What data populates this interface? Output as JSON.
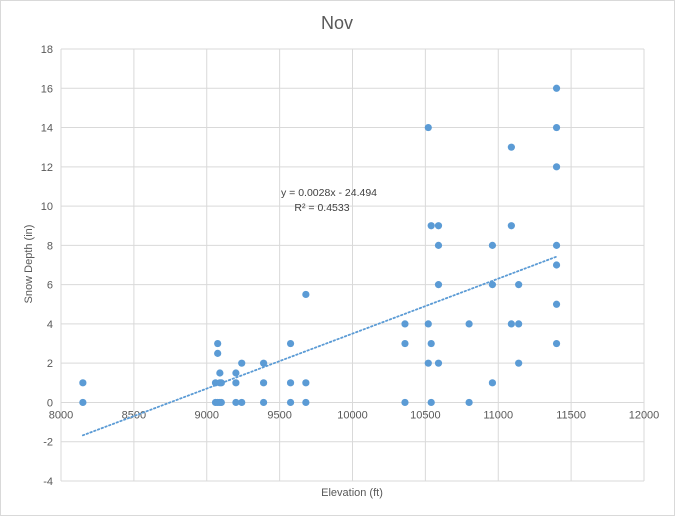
{
  "chart_data": {
    "type": "scatter",
    "title": "Nov",
    "xlabel": "Elevation (ft)",
    "ylabel": "Snow Depth (in)",
    "xlim": [
      8000,
      12000
    ],
    "ylim": [
      -4,
      18
    ],
    "x_ticks": [
      8000,
      8500,
      9000,
      9500,
      10000,
      10500,
      11000,
      11500,
      12000
    ],
    "y_ticks": [
      -4,
      -2,
      0,
      2,
      4,
      6,
      8,
      10,
      12,
      14,
      16,
      18
    ],
    "grid": true,
    "legend": "none",
    "marker_color": "#5b9bd5",
    "trendline": {
      "type": "linear",
      "slope": 0.0028,
      "intercept": -24.494,
      "x_range": [
        8150,
        11400
      ],
      "color": "#5b9bd5",
      "equation": "y = 0.0028x - 24.494",
      "r_squared": "R² = 0.4533"
    },
    "points": [
      [
        8150,
        0
      ],
      [
        8150,
        1
      ],
      [
        9060,
        0
      ],
      [
        9060,
        1
      ],
      [
        9075,
        0
      ],
      [
        9075,
        2.5
      ],
      [
        9075,
        3
      ],
      [
        9090,
        0
      ],
      [
        9090,
        1
      ],
      [
        9090,
        1.5
      ],
      [
        9100,
        0
      ],
      [
        9100,
        1
      ],
      [
        9200,
        0
      ],
      [
        9200,
        1
      ],
      [
        9200,
        1.5
      ],
      [
        9240,
        0
      ],
      [
        9240,
        2
      ],
      [
        9390,
        0
      ],
      [
        9390,
        1
      ],
      [
        9390,
        2
      ],
      [
        9575,
        0
      ],
      [
        9575,
        1
      ],
      [
        9575,
        3
      ],
      [
        9680,
        0
      ],
      [
        9680,
        1
      ],
      [
        9680,
        5.5
      ],
      [
        10360,
        0
      ],
      [
        10360,
        3
      ],
      [
        10360,
        4
      ],
      [
        10520,
        2
      ],
      [
        10520,
        4
      ],
      [
        10520,
        14
      ],
      [
        10540,
        0
      ],
      [
        10540,
        3
      ],
      [
        10540,
        9
      ],
      [
        10590,
        2
      ],
      [
        10590,
        6
      ],
      [
        10590,
        8
      ],
      [
        10590,
        9
      ],
      [
        10800,
        0
      ],
      [
        10800,
        4
      ],
      [
        10960,
        1
      ],
      [
        10960,
        6
      ],
      [
        10960,
        8
      ],
      [
        11090,
        4
      ],
      [
        11090,
        9
      ],
      [
        11090,
        13
      ],
      [
        11140,
        2
      ],
      [
        11140,
        4
      ],
      [
        11140,
        6
      ],
      [
        11400,
        3
      ],
      [
        11400,
        5
      ],
      [
        11400,
        7
      ],
      [
        11400,
        8
      ],
      [
        11400,
        12
      ],
      [
        11400,
        14
      ],
      [
        11400,
        16
      ]
    ]
  }
}
